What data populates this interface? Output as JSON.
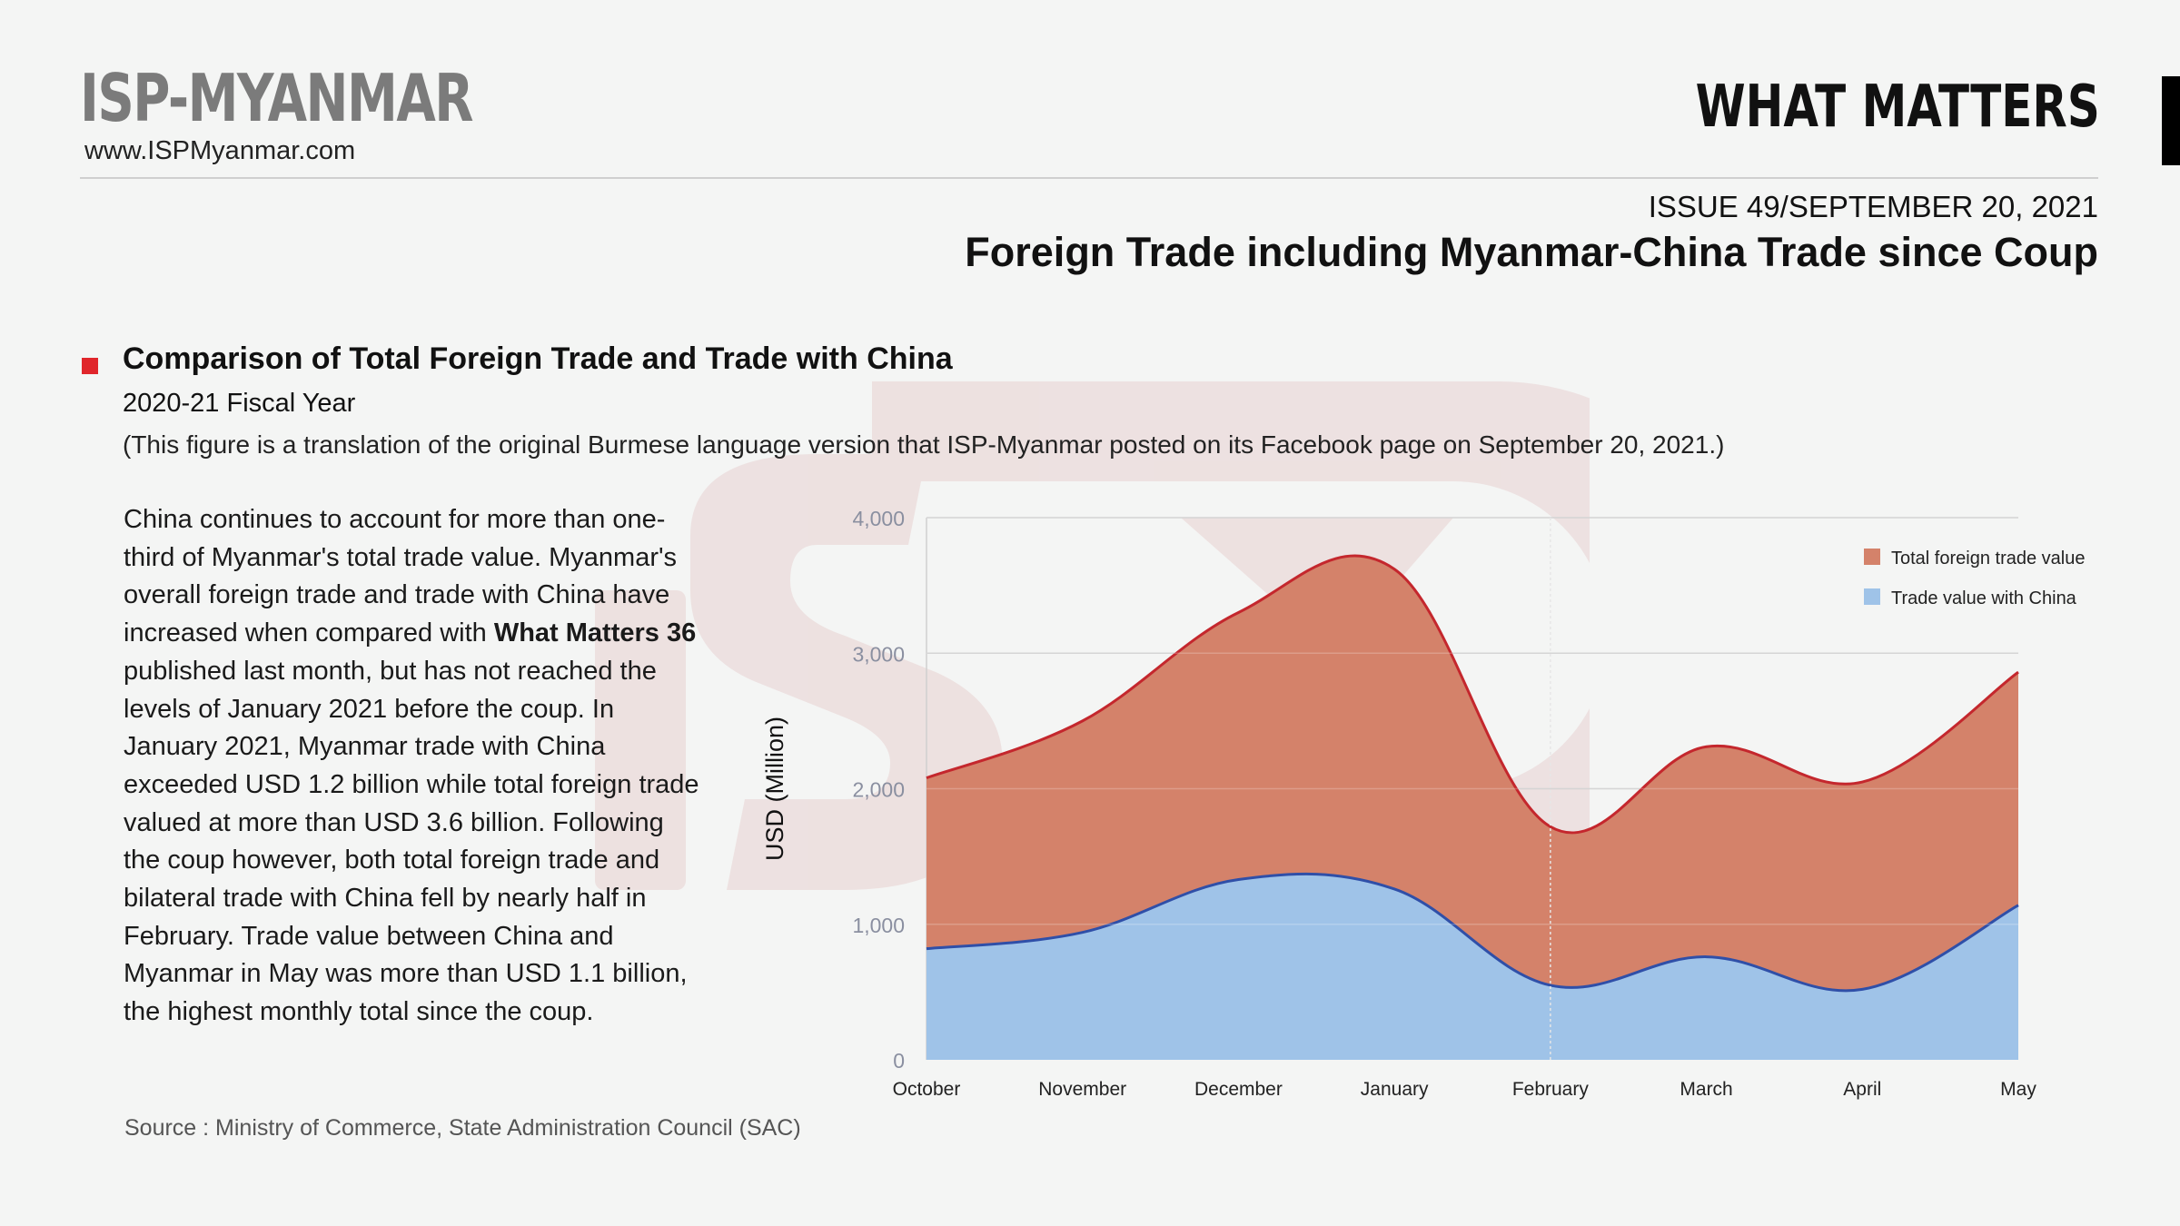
{
  "header": {
    "brand": "ISP-MYANMAR",
    "website": "www.ISPMyanmar.com",
    "series": "WHAT MATTERS",
    "issue_number": "ISSUE 49",
    "issue_date": "/SEPTEMBER 20, 2021",
    "headline": "Foreign Trade including Myanmar-China Trade since Coup"
  },
  "section": {
    "title": "Comparison of Total Foreign Trade and Trade with China",
    "subtitle": "2020-21 Fiscal Year",
    "note": "(This figure is a translation of the original Burmese language version that ISP-Myanmar posted on its Facebook page on September 20, 2021.)"
  },
  "body": {
    "part1": "China continues to account for more than one-third of Myanmar's total trade value. Myanmar's overall foreign trade and trade with China have increased when compared with ",
    "bold": "What Matters 36",
    "part2": " published last month, but has not reached the levels of January 2021 before the coup. In January 2021, Myanmar trade with China exceeded USD 1.2 billion while total foreign trade valued at more than USD 3.6 billion. Following the coup however, both total foreign trade and bilateral trade with China fell by nearly half in February.  Trade value between China and Myanmar in May was more than USD 1.1 billion, the highest monthly total since the coup."
  },
  "source": "Source :  Ministry of Commerce, State Administration Council (SAC)",
  "colors": {
    "accent_red": "#e0262b",
    "total_fill": "#d4826a",
    "total_line": "#c4272d",
    "china_fill": "#9fc3e8",
    "china_line": "#2f4fa8"
  },
  "chart_data": {
    "type": "area",
    "categories": [
      "October",
      "November",
      "December",
      "January",
      "February",
      "March",
      "April",
      "May"
    ],
    "ylabel": "USD (Million)",
    "ylim": [
      0,
      4000
    ],
    "yticks": [
      "0",
      "1,000",
      "2,000",
      "3,000",
      "4,000"
    ],
    "grid": true,
    "legend_position": "top-right",
    "series": [
      {
        "name": "Total foreign trade value",
        "values": [
          2080,
          2500,
          3300,
          3620,
          1720,
          2310,
          2050,
          2860
        ]
      },
      {
        "name": "Trade value with China",
        "values": [
          820,
          940,
          1330,
          1260,
          550,
          760,
          520,
          1140
        ]
      }
    ]
  }
}
